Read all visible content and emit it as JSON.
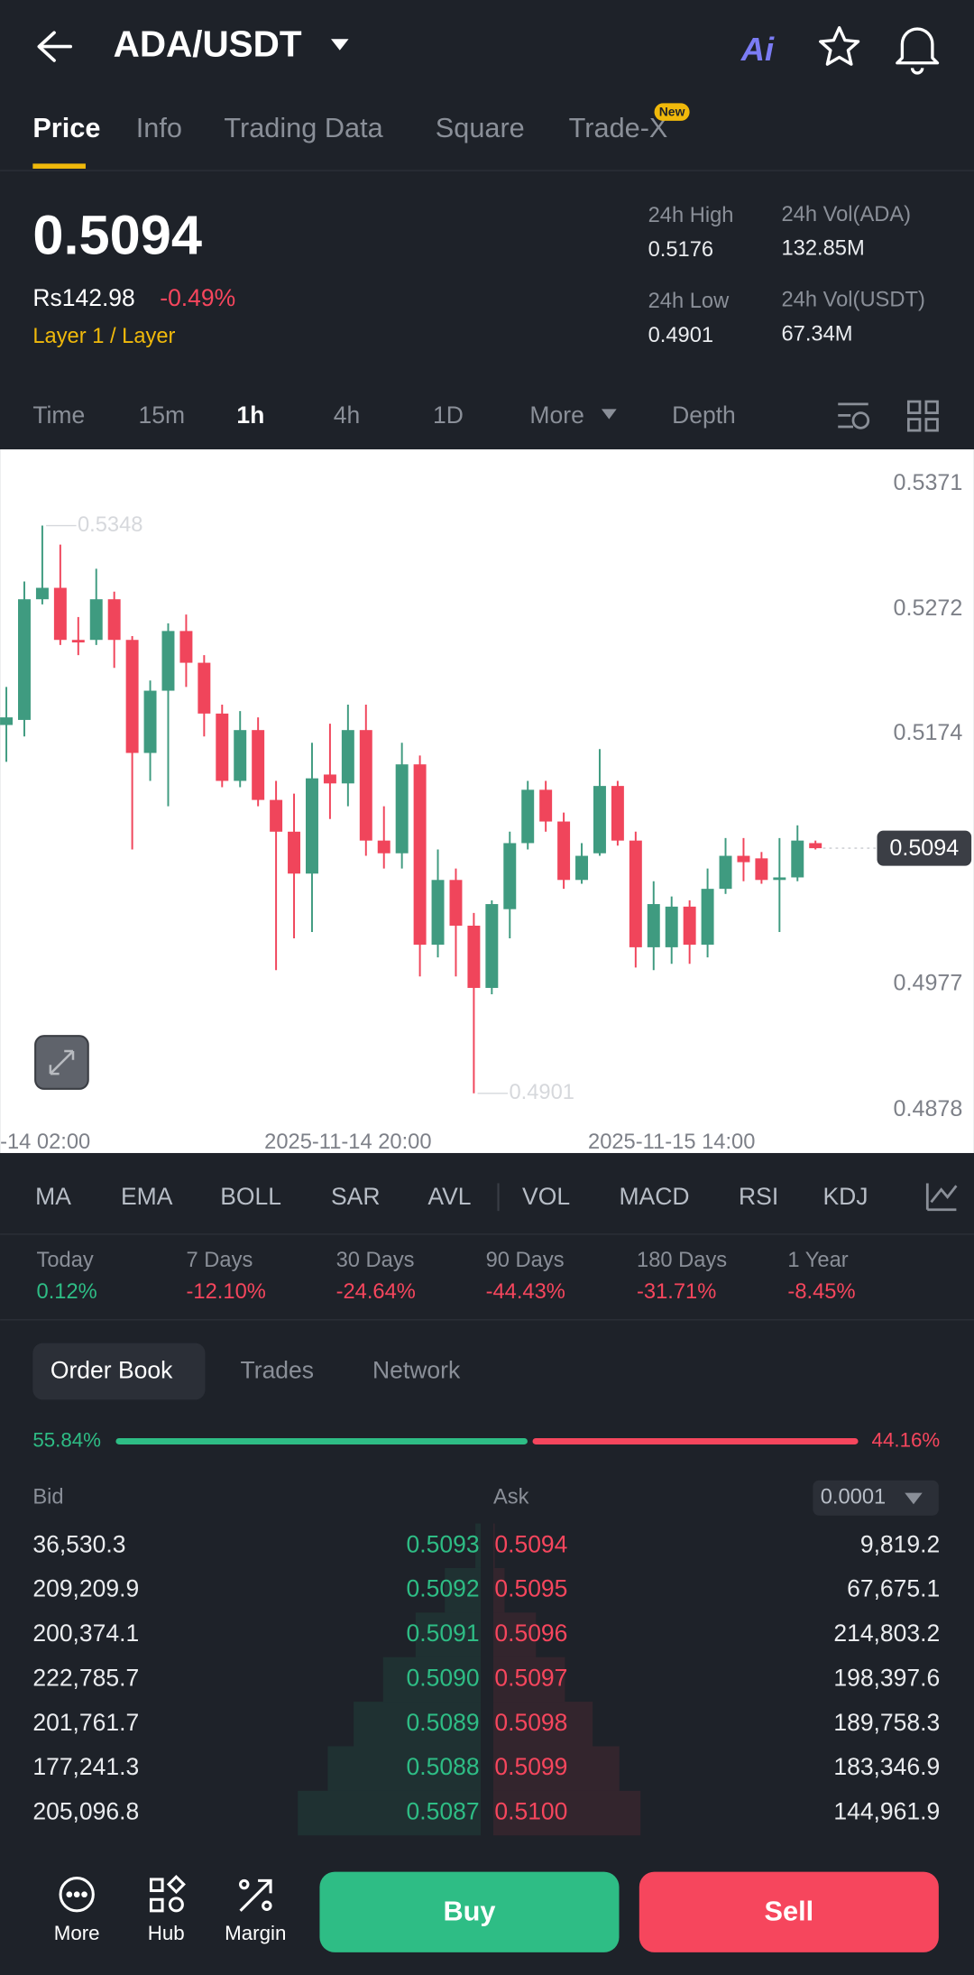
{
  "header": {
    "pair": "ADA/USDT",
    "ai": "Ai"
  },
  "tabs": [
    "Price",
    "Info",
    "Trading Data",
    "Square",
    "Trade-X"
  ],
  "tab_badge": "New",
  "ticker": {
    "price": "0.5094",
    "local_price": "Rs142.98",
    "change": "-0.49%",
    "tag": "Layer 1 / Layer",
    "stats": [
      {
        "label": "24h High",
        "value": "0.5176"
      },
      {
        "label": "24h Vol(ADA)",
        "value": "132.85M"
      },
      {
        "label": "24h Low",
        "value": "0.4901"
      },
      {
        "label": "24h Vol(USDT)",
        "value": "67.34M"
      }
    ]
  },
  "intervals": [
    "Time",
    "15m",
    "1h",
    "4h",
    "1D",
    "More",
    "Depth"
  ],
  "chart_data": {
    "type": "candlestick",
    "candles": [
      {
        "open": 0.5191,
        "high": 0.5221,
        "low": 0.5162,
        "close": 0.5197
      },
      {
        "open": 0.5195,
        "high": 0.5304,
        "low": 0.5182,
        "close": 0.529
      },
      {
        "open": 0.529,
        "high": 0.5348,
        "low": 0.5286,
        "close": 0.5299
      },
      {
        "open": 0.5299,
        "high": 0.5333,
        "low": 0.5254,
        "close": 0.5258
      },
      {
        "open": 0.5258,
        "high": 0.5276,
        "low": 0.5246,
        "close": 0.5256
      },
      {
        "open": 0.5258,
        "high": 0.5314,
        "low": 0.5254,
        "close": 0.529
      },
      {
        "open": 0.529,
        "high": 0.5296,
        "low": 0.5236,
        "close": 0.5258
      },
      {
        "open": 0.5258,
        "high": 0.5261,
        "low": 0.5093,
        "close": 0.5169
      },
      {
        "open": 0.5169,
        "high": 0.5226,
        "low": 0.5147,
        "close": 0.5218
      },
      {
        "open": 0.5218,
        "high": 0.5271,
        "low": 0.5127,
        "close": 0.5265
      },
      {
        "open": 0.5265,
        "high": 0.5278,
        "low": 0.5221,
        "close": 0.524
      },
      {
        "open": 0.524,
        "high": 0.5246,
        "low": 0.5182,
        "close": 0.52
      },
      {
        "open": 0.52,
        "high": 0.5207,
        "low": 0.5142,
        "close": 0.5147
      },
      {
        "open": 0.5147,
        "high": 0.5202,
        "low": 0.5142,
        "close": 0.5187
      },
      {
        "open": 0.5187,
        "high": 0.5197,
        "low": 0.5127,
        "close": 0.5132
      },
      {
        "open": 0.5132,
        "high": 0.5147,
        "low": 0.4998,
        "close": 0.5107
      },
      {
        "open": 0.5107,
        "high": 0.5137,
        "low": 0.5023,
        "close": 0.5074
      },
      {
        "open": 0.5074,
        "high": 0.5177,
        "low": 0.5028,
        "close": 0.5149
      },
      {
        "open": 0.5152,
        "high": 0.5192,
        "low": 0.5117,
        "close": 0.5145
      },
      {
        "open": 0.5145,
        "high": 0.5207,
        "low": 0.5127,
        "close": 0.5187
      },
      {
        "open": 0.5187,
        "high": 0.5207,
        "low": 0.5088,
        "close": 0.51
      },
      {
        "open": 0.51,
        "high": 0.5127,
        "low": 0.5078,
        "close": 0.509
      },
      {
        "open": 0.509,
        "high": 0.5177,
        "low": 0.5078,
        "close": 0.516
      },
      {
        "open": 0.516,
        "high": 0.5167,
        "low": 0.4993,
        "close": 0.5018
      },
      {
        "open": 0.5018,
        "high": 0.5093,
        "low": 0.5008,
        "close": 0.5069
      },
      {
        "open": 0.5069,
        "high": 0.5078,
        "low": 0.4993,
        "close": 0.5033
      },
      {
        "open": 0.5033,
        "high": 0.5043,
        "low": 0.4901,
        "close": 0.4984
      },
      {
        "open": 0.4984,
        "high": 0.5053,
        "low": 0.4979,
        "close": 0.505
      },
      {
        "open": 0.5046,
        "high": 0.5107,
        "low": 0.5023,
        "close": 0.5098
      },
      {
        "open": 0.5098,
        "high": 0.5147,
        "low": 0.5093,
        "close": 0.514
      },
      {
        "open": 0.514,
        "high": 0.5147,
        "low": 0.5107,
        "close": 0.5115
      },
      {
        "open": 0.5115,
        "high": 0.5122,
        "low": 0.5062,
        "close": 0.5069
      },
      {
        "open": 0.5069,
        "high": 0.5098,
        "low": 0.5066,
        "close": 0.5088
      },
      {
        "open": 0.509,
        "high": 0.5172,
        "low": 0.5088,
        "close": 0.5143
      },
      {
        "open": 0.5143,
        "high": 0.5147,
        "low": 0.5096,
        "close": 0.51
      },
      {
        "open": 0.51,
        "high": 0.5107,
        "low": 0.5,
        "close": 0.5016
      },
      {
        "open": 0.5016,
        "high": 0.5068,
        "low": 0.4998,
        "close": 0.505
      },
      {
        "open": 0.5016,
        "high": 0.5056,
        "low": 0.5003,
        "close": 0.5048
      },
      {
        "open": 0.5048,
        "high": 0.5053,
        "low": 0.5003,
        "close": 0.5018
      },
      {
        "open": 0.5018,
        "high": 0.5078,
        "low": 0.5008,
        "close": 0.5062
      },
      {
        "open": 0.5062,
        "high": 0.5102,
        "low": 0.5058,
        "close": 0.5088
      },
      {
        "open": 0.5088,
        "high": 0.5102,
        "low": 0.5068,
        "close": 0.5083
      },
      {
        "open": 0.5086,
        "high": 0.5091,
        "low": 0.5066,
        "close": 0.5069
      },
      {
        "open": 0.5069,
        "high": 0.5102,
        "low": 0.5028,
        "close": 0.5071
      },
      {
        "open": 0.5071,
        "high": 0.5112,
        "low": 0.5068,
        "close": 0.51
      },
      {
        "open": 0.5098,
        "high": 0.51,
        "low": 0.5093,
        "close": 0.5094
      }
    ],
    "up_color": "#3f9b80",
    "down_color": "#f0455b",
    "ylim": [
      0.4854,
      0.5408
    ],
    "yticks": [
      0.5371,
      0.5272,
      0.5174,
      0.4977,
      0.4878
    ],
    "xticks": [
      "-14 02:00",
      "2025-11-14 20:00",
      "2025-11-15 14:00"
    ]
  },
  "indicators": [
    "MA",
    "EMA",
    "BOLL",
    "SAR",
    "AVL",
    "VOL",
    "MACD",
    "RSI",
    "KDJ"
  ],
  "performance": [
    {
      "period": "Today",
      "change": "0.12%"
    },
    {
      "period": "7 Days",
      "change": "-12.10%"
    },
    {
      "period": "30 Days",
      "change": "-24.64%"
    },
    {
      "period": "90 Days",
      "change": "-44.43%"
    },
    {
      "period": "180 Days",
      "change": "-31.71%"
    },
    {
      "period": "1 Year",
      "change": "-8.45%"
    }
  ],
  "book_tabs": [
    "Order Book",
    "Trades",
    "Network"
  ],
  "ratio": {
    "bid": "55.84%",
    "ask": "44.16%"
  },
  "book": {
    "bid_label": "Bid",
    "ask_label": "Ask",
    "precision": "0.0001",
    "rows": [
      [
        "36,530.3",
        "0.5093",
        "0.5094",
        "9,819.2"
      ],
      [
        "209,209.9",
        "0.5092",
        "0.5095",
        "67,675.1"
      ],
      [
        "200,374.1",
        "0.5091",
        "0.5096",
        "214,803.2"
      ],
      [
        "222,785.7",
        "0.5090",
        "0.5097",
        "198,397.6"
      ],
      [
        "201,761.7",
        "0.5089",
        "0.5098",
        "189,758.3"
      ],
      [
        "177,241.3",
        "0.5088",
        "0.5099",
        "183,346.9"
      ],
      [
        "205,096.8",
        "0.5087",
        "0.5100",
        "144,961.9"
      ]
    ]
  },
  "bottom": {
    "buttons": [
      "More",
      "Hub",
      "Margin"
    ],
    "buy": "Buy",
    "sell": "Sell"
  }
}
